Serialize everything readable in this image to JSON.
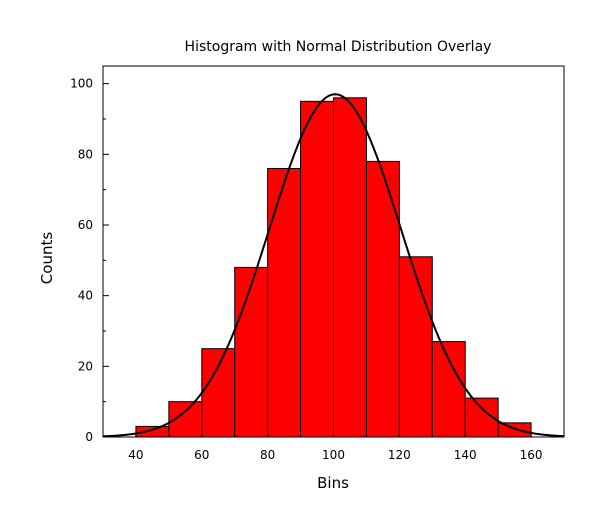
{
  "chart_data": {
    "type": "bar",
    "title": "Histogram with Normal Distribution Overlay",
    "xlabel": "Bins",
    "ylabel": "Counts",
    "xlim": [
      30,
      170
    ],
    "ylim": [
      0,
      105
    ],
    "x_ticks": [
      40,
      60,
      80,
      100,
      120,
      140,
      160
    ],
    "y_ticks": [
      0,
      20,
      40,
      60,
      80,
      100
    ],
    "grid": false,
    "legend": "none",
    "bins": [
      {
        "start": 40,
        "end": 50,
        "count": 3
      },
      {
        "start": 50,
        "end": 60,
        "count": 10
      },
      {
        "start": 60,
        "end": 70,
        "count": 25
      },
      {
        "start": 70,
        "end": 80,
        "count": 48
      },
      {
        "start": 80,
        "end": 90,
        "count": 76
      },
      {
        "start": 90,
        "end": 100,
        "count": 95
      },
      {
        "start": 100,
        "end": 110,
        "count": 96
      },
      {
        "start": 110,
        "end": 120,
        "count": 78
      },
      {
        "start": 120,
        "end": 130,
        "count": 51
      },
      {
        "start": 130,
        "end": 140,
        "count": 27
      },
      {
        "start": 140,
        "end": 150,
        "count": 11
      },
      {
        "start": 150,
        "end": 160,
        "count": 4
      }
    ],
    "overlay": {
      "type": "normal",
      "mean": 100.5,
      "sd": 20,
      "peak": 97
    },
    "colors": {
      "bar_fill": "#ff0000",
      "bar_stroke": "#000000",
      "curve": "#000000"
    }
  }
}
